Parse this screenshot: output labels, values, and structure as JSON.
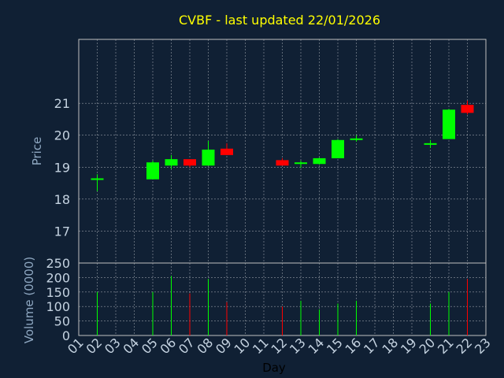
{
  "chart_data": {
    "type": "candlestick",
    "title": "CVBF - last updated 22/01/2026",
    "xlabel": "Day",
    "price_panel": {
      "ylabel": "Price",
      "ylim": [
        16,
        23
      ],
      "yticks": [
        "17",
        "18",
        "19",
        "20",
        "21"
      ]
    },
    "volume_panel": {
      "ylabel": "Volume (0000)",
      "ylim": [
        0,
        250
      ],
      "yticks": [
        "0",
        "50",
        "100",
        "150",
        "200",
        "250"
      ]
    },
    "x_ticks": [
      "01",
      "02",
      "03",
      "04",
      "05",
      "06",
      "07",
      "08",
      "09",
      "10",
      "11",
      "12",
      "13",
      "14",
      "15",
      "16",
      "17",
      "18",
      "19",
      "20",
      "21",
      "22",
      "23"
    ],
    "grid": true,
    "colors": {
      "background": "#102034",
      "up": "#00ff00",
      "down": "#ff0000",
      "title": "#ffff00",
      "grid": "#ffffff"
    },
    "candles": [
      {
        "day": 2,
        "open": 18.62,
        "high": 18.78,
        "low": 18.25,
        "close": 18.65,
        "volume": 150
      },
      {
        "day": 5,
        "open": 18.62,
        "high": 19.2,
        "low": 18.62,
        "close": 19.15,
        "volume": 150
      },
      {
        "day": 6,
        "open": 19.05,
        "high": 19.38,
        "low": 18.95,
        "close": 19.25,
        "volume": 205
      },
      {
        "day": 7,
        "open": 19.25,
        "high": 19.25,
        "low": 19.0,
        "close": 19.05,
        "volume": 145
      },
      {
        "day": 8,
        "open": 19.05,
        "high": 19.82,
        "low": 19.05,
        "close": 19.55,
        "volume": 195
      },
      {
        "day": 9,
        "open": 19.58,
        "high": 19.75,
        "low": 19.38,
        "close": 19.38,
        "volume": 115
      },
      {
        "day": 12,
        "open": 19.22,
        "high": 19.28,
        "low": 19.05,
        "close": 19.05,
        "volume": 100
      },
      {
        "day": 13,
        "open": 19.1,
        "high": 19.2,
        "low": 18.98,
        "close": 19.15,
        "volume": 120
      },
      {
        "day": 14,
        "open": 19.1,
        "high": 19.3,
        "low": 19.08,
        "close": 19.28,
        "volume": 90
      },
      {
        "day": 15,
        "open": 19.28,
        "high": 19.88,
        "low": 19.28,
        "close": 19.85,
        "volume": 110
      },
      {
        "day": 16,
        "open": 19.85,
        "high": 20.0,
        "low": 19.8,
        "close": 19.9,
        "volume": 120
      },
      {
        "day": 20,
        "open": 19.72,
        "high": 19.85,
        "low": 19.6,
        "close": 19.75,
        "volume": 110
      },
      {
        "day": 21,
        "open": 19.88,
        "high": 20.82,
        "low": 19.88,
        "close": 20.8,
        "volume": 150
      },
      {
        "day": 22,
        "open": 20.95,
        "high": 21.08,
        "low": 20.65,
        "close": 20.7,
        "volume": 195
      }
    ]
  }
}
